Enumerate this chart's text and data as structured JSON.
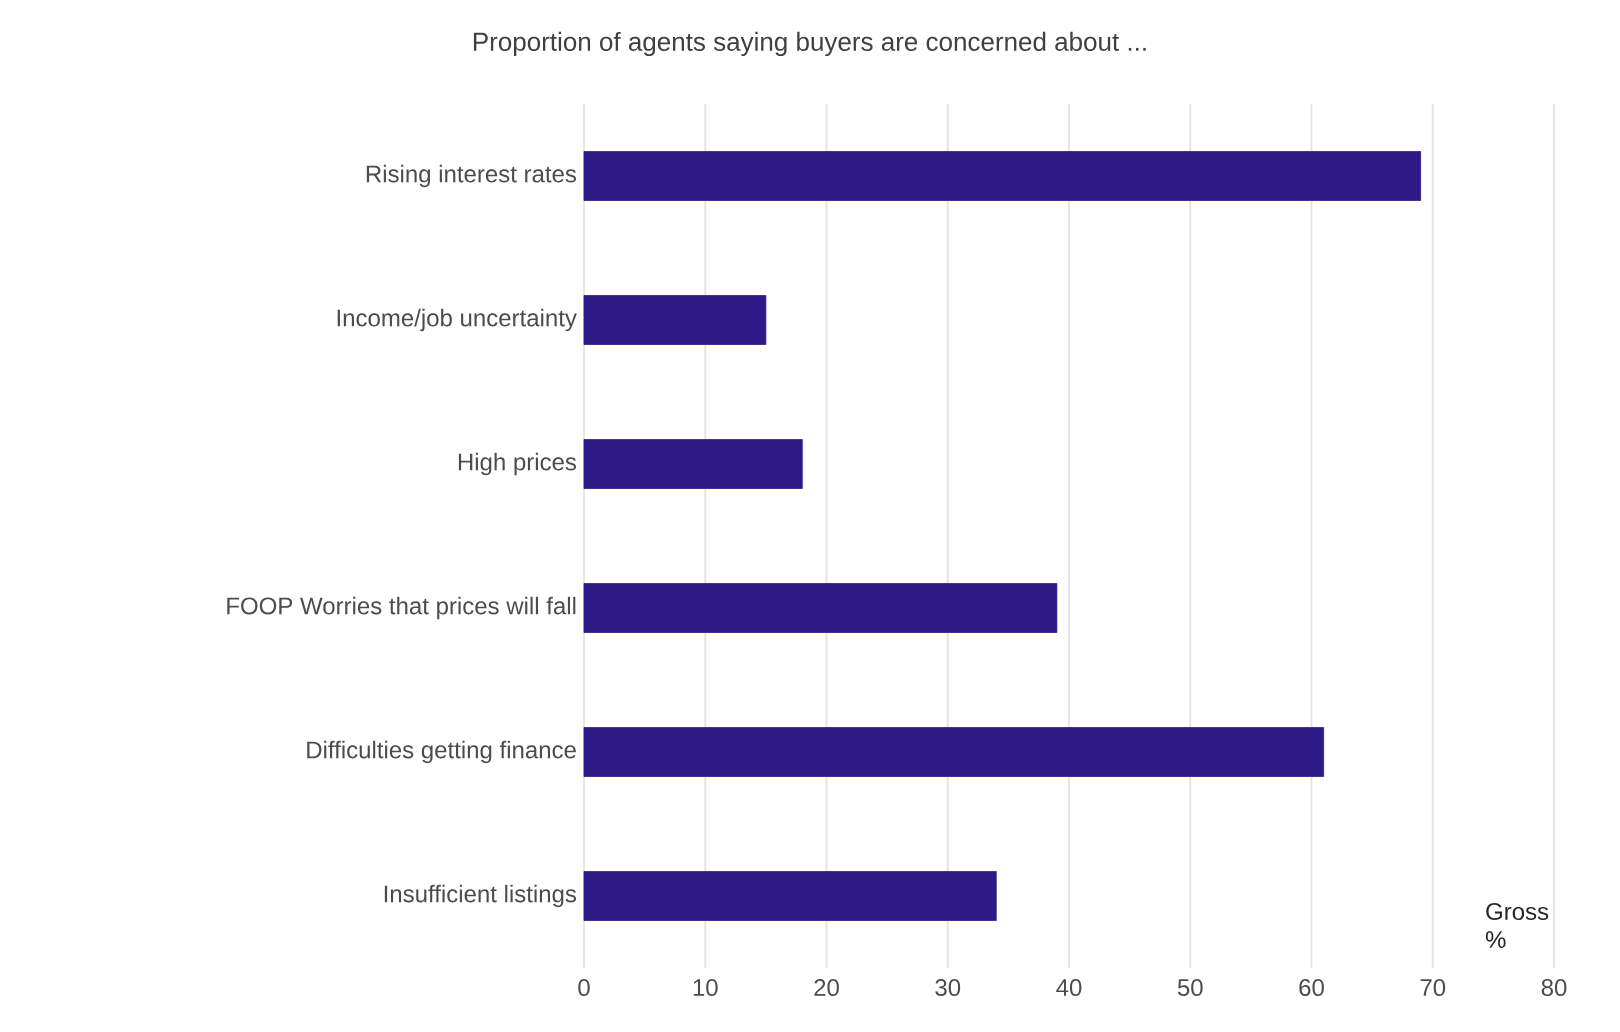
{
  "chart_data": {
    "type": "bar",
    "orientation": "horizontal",
    "title": "Proportion of agents saying buyers are concerned about ...",
    "xlabel": "Gross %",
    "categories": [
      "Rising interest rates",
      "Income/job uncertainty",
      "High prices",
      "FOOP Worries that prices will fall",
      "Difficulties getting finance",
      "Insufficient listings"
    ],
    "values": [
      69,
      15,
      18,
      39,
      61,
      34
    ],
    "color": "#2e1a87",
    "xlim": [
      0,
      80
    ],
    "xticks": [
      0,
      10,
      20,
      30,
      40,
      50,
      60,
      70,
      80
    ],
    "grid": "x"
  }
}
